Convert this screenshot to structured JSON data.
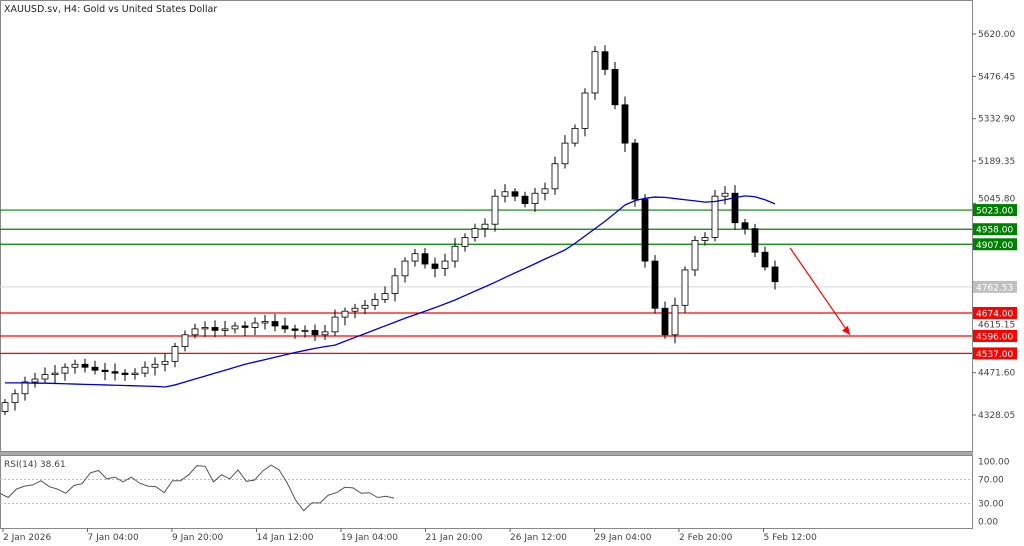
{
  "chart_data": {
    "type": "candlestick",
    "title": "XAUUSD.sv, H4:  Gold vs United States Dollar",
    "price_axis": {
      "ticks": [
        "5620.00",
        "5476.45",
        "5332.90",
        "5189.35",
        "5045.80",
        "4615.15",
        "4471.60",
        "4328.05"
      ],
      "range": [
        4328.05,
        5620.0
      ]
    },
    "closes": [
      4370,
      4400,
      4440,
      4450,
      4465,
      4470,
      4490,
      4500,
      4490,
      4480,
      4475,
      4470,
      4465,
      4470,
      4490,
      4500,
      4510,
      4560,
      4600,
      4620,
      4625,
      4615,
      4620,
      4630,
      4625,
      4640,
      4645,
      4630,
      4620,
      4615,
      4615,
      4600,
      4610,
      4660,
      4680,
      4690,
      4700,
      4720,
      4740,
      4800,
      4850,
      4875,
      4840,
      4825,
      4850,
      4900,
      4930,
      4960,
      4975,
      5070,
      5085,
      5070,
      5045,
      5080,
      5095,
      5180,
      5250,
      5300,
      5420,
      5560,
      5500,
      5380,
      5250,
      5060,
      4850,
      4690,
      4600,
      4700,
      4820,
      4920,
      4930,
      5070,
      5080,
      4980,
      4960,
      4880,
      4830,
      4780
    ],
    "moving_average": [
      4437,
      4437,
      4437,
      4436,
      4436,
      4435,
      4434,
      4433,
      4432,
      4431,
      4430,
      4429,
      4428,
      4427,
      4426,
      4425,
      4423,
      4430,
      4440,
      4450,
      4460,
      4470,
      4480,
      4490,
      4500,
      4508,
      4516,
      4524,
      4532,
      4540,
      4547,
      4554,
      4560,
      4565,
      4578,
      4591,
      4604,
      4617,
      4630,
      4643,
      4656,
      4668,
      4680,
      4692,
      4705,
      4718,
      4733,
      4748,
      4763,
      4778,
      4794,
      4810,
      4825,
      4841,
      4857,
      4872,
      4888,
      4910,
      4935,
      4960,
      4985,
      5012,
      5040,
      5055,
      5063,
      5067,
      5066,
      5062,
      5058,
      5054,
      5050,
      5052,
      5058,
      5065,
      5071,
      5068,
      5058,
      5044
    ],
    "moving_average_color": "#0000cc",
    "current_price": {
      "value": 4762.53,
      "label": "4762.53",
      "color": "#c0c0c0"
    },
    "levels": [
      {
        "value": 5023.0,
        "label": "5023.00",
        "color": "#008000"
      },
      {
        "value": 4958.0,
        "label": "4958.00",
        "color": "#008000"
      },
      {
        "value": 4907.0,
        "label": "4907.00",
        "color": "#008000"
      },
      {
        "value": 4674.0,
        "label": "4674.00",
        "color": "#ff0000"
      },
      {
        "value": 4596.0,
        "label": "4596.00",
        "color": "#ff0000"
      },
      {
        "value": 4537.0,
        "label": "4537.00",
        "color": "#ff0000"
      }
    ],
    "arrow": {
      "from_price": 4895,
      "to_price": 4600,
      "color": "#ff0000",
      "direction": "down"
    },
    "time_labels": [
      "2 Jan 2026",
      "7 Jan 04:00",
      "9 Jan 20:00",
      "14 Jan 12:00",
      "19 Jan 04:00",
      "21 Jan 20:00",
      "26 Jan 12:00",
      "29 Jan 04:00",
      "2 Feb 20:00",
      "5 Feb 12:00"
    ],
    "rsi": {
      "label": "RSI(14) 38.61",
      "ticks": [
        "100.00",
        "70.00",
        "30.00",
        "0.00"
      ],
      "levels": [
        70,
        30
      ],
      "values": [
        47,
        40,
        54,
        59,
        61,
        68,
        58,
        54,
        47,
        60,
        63,
        81,
        85,
        71,
        74,
        66,
        74,
        64,
        59,
        58,
        48,
        68,
        68,
        78,
        93,
        92,
        66,
        78,
        71,
        86,
        67,
        69,
        84,
        94,
        86,
        64,
        36,
        18,
        31,
        31,
        44,
        48,
        57,
        56,
        47,
        48,
        40,
        42,
        39
      ]
    }
  }
}
